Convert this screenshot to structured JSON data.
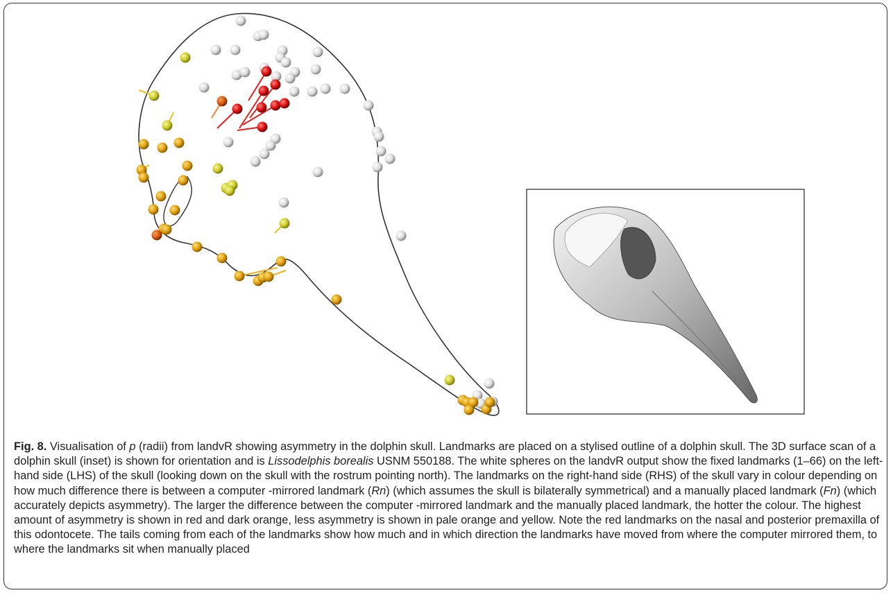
{
  "figure": {
    "label": "Fig. 8.",
    "caption": [
      {
        "text": " Visualisation of "
      },
      {
        "text": "p",
        "italic": true
      },
      {
        "text": " (radii) from landvR showing asymmetry in the dolphin skull. Landmarks are placed on a stylised outline of a dolphin skull. The 3D surface scan of a dolphin skull (inset) is shown for orientation and is "
      },
      {
        "text": "Lissodelphis borealis",
        "italic": true
      },
      {
        "text": " USNM 550188. The white spheres on the landvR output show the fixed landmarks (1–66) on the left-hand side (LHS) of the skull (looking down on the skull with the rostrum pointing north). The landmarks on the right-hand side (RHS) of the skull vary in colour depending on how much difference there is between a computer -mirrored landmark ("
      },
      {
        "text": "Rn",
        "italic": true
      },
      {
        "text": ") (which assumes the skull is bilaterally symmetrical) and a manually placed landmark ("
      },
      {
        "text": "Fn",
        "italic": true
      },
      {
        "text": ") (which accurately depicts asymmetry). The larger the difference between the computer -mirrored landmark and the manually placed landmark, the hotter the colour. The highest amount of asymmetry is shown in red and dark orange, less asymmetry is shown in pale orange and yellow. Note the red landmarks on the nasal and posterior premaxilla of this odontocete. The tails coming from each of the landmarks show how much and in which direction the landmarks have moved from where the computer mirrored them, to where the landmarks sit when manually placed"
      }
    ]
  }
}
